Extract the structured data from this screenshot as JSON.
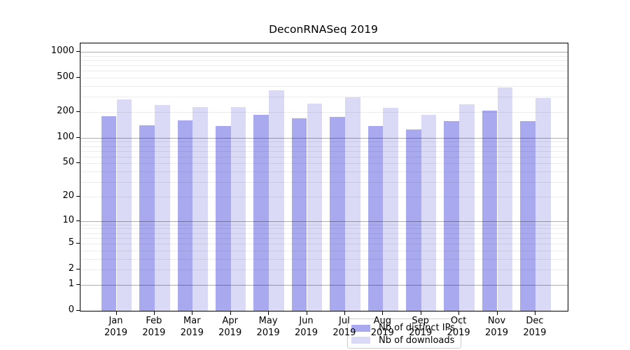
{
  "figure": {
    "background": "#ffffff",
    "spine_color": "#000000",
    "grid_major_color": "#b3b3b3",
    "grid_minor_color": "#ebebeb"
  },
  "chart_data": {
    "type": "bar",
    "title": "DeconRNASeq 2019",
    "categories": [
      "Jan 2019",
      "Feb 2019",
      "Mar 2019",
      "Apr 2019",
      "May 2019",
      "Jun 2019",
      "Jul 2019",
      "Aug 2019",
      "Sep 2019",
      "Oct 2019",
      "Nov 2019",
      "Dec 2019"
    ],
    "series": [
      {
        "name": "Nb of distinct IPs",
        "color": "#a9a9f0",
        "values": [
          180,
          141,
          161,
          138,
          184,
          168,
          175,
          137,
          125,
          156,
          206,
          156
        ]
      },
      {
        "name": "Nb of downloads",
        "color": "#dadaf6",
        "values": [
          281,
          240,
          228,
          230,
          358,
          251,
          296,
          225,
          186,
          246,
          384,
          290
        ]
      }
    ],
    "xlabel": "",
    "ylabel": "",
    "yscale": "log1p",
    "yticks": [
      0,
      1,
      2,
      5,
      10,
      20,
      50,
      100,
      200,
      500,
      1000
    ],
    "ylim": [
      0,
      1250
    ],
    "grid": true,
    "legend_position": "lower center"
  }
}
